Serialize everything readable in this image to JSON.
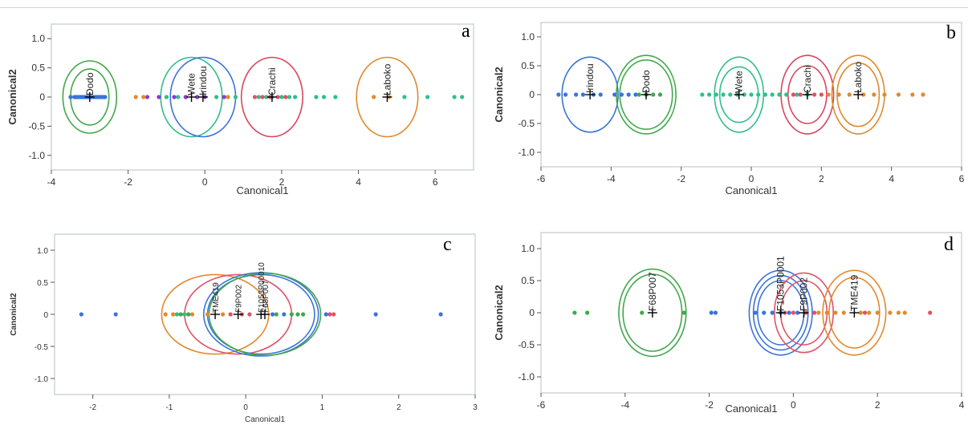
{
  "chart_data": [
    {
      "type": "scatter",
      "panel_label": "a",
      "xlabel": "Canonical1",
      "ylabel": "Canonical2",
      "xlim": [
        -4,
        7
      ],
      "ylim": [
        -1.25,
        1.25
      ],
      "xticks": [
        -4,
        -2,
        0,
        2,
        4,
        6
      ],
      "yticks": [
        -1.0,
        -0.5,
        0,
        0.5,
        1.0
      ],
      "tick_format": 1,
      "grid": false,
      "groups": [
        {
          "name": "Dodo",
          "color": "#3a74d8",
          "ring_color": "#3fa84a",
          "mean": 3.0,
          "mean_sign": -1,
          "radii": [
            [
              0.7,
              0.62
            ],
            [
              0.5,
              0.48
            ]
          ],
          "points": [
            -3.5,
            -3.4,
            -3.35,
            -3.3,
            -3.25,
            -3.2,
            -3.15,
            -3.1,
            -3.05,
            -3.0,
            -2.95,
            -2.9,
            -2.85,
            -2.8,
            -2.75,
            -2.7,
            -2.65,
            -2.6
          ]
        },
        {
          "name": "Wete",
          "color": "#2fbf8a",
          "ring_color": "#2fbf8a",
          "mean": 0.35,
          "mean_sign": -1,
          "radii": [
            [
              0.8,
              0.68
            ]
          ],
          "points": [
            -1.0,
            -0.7,
            -0.5,
            -0.2,
            0.3,
            0.8,
            1.4,
            2.9,
            3.1,
            3.4,
            5.2,
            5.8,
            6.5,
            6.7
          ]
        },
        {
          "name": "Irindou",
          "color": "#8d3ec7",
          "ring_color": "#3a74d8",
          "mean": 0.05,
          "mean_sign": -1,
          "radii": [
            [
              0.85,
              0.68
            ]
          ],
          "points": [
            -1.5,
            -1.2,
            -0.8,
            -0.5,
            -0.2,
            0.0,
            0.5
          ]
        },
        {
          "name": "Crachi",
          "color": "#e05268",
          "ring_color": "#d9475e",
          "mean": 1.75,
          "mean_sign": 1,
          "radii": [
            [
              0.8,
              0.68
            ]
          ],
          "points": [
            1.3,
            1.5,
            1.7,
            1.9,
            2.1
          ]
        },
        {
          "name": "Laboko",
          "color": "#e08a2e",
          "ring_color": "#e08a2e",
          "mean": 4.75,
          "mean_sign": 1,
          "radii": [
            [
              0.8,
              0.68
            ]
          ],
          "points": [
            -1.8,
            -1.6,
            0.6,
            4.4,
            4.8
          ]
        }
      ],
      "extra_points": [
        {
          "color": "#2fbf8a",
          "x": [
            1.6,
            1.75,
            2.0,
            2.2,
            2.35
          ]
        }
      ]
    },
    {
      "type": "scatter",
      "panel_label": "b",
      "xlabel": "Canonical1",
      "ylabel": "Canonical2",
      "xlim": [
        -6,
        6
      ],
      "ylim": [
        -1.25,
        1.25
      ],
      "xticks": [
        -6,
        -4,
        -2,
        0,
        2,
        4,
        6
      ],
      "yticks": [
        -1.0,
        -0.5,
        0,
        0.5,
        1.0
      ],
      "tick_format": 1,
      "grid": false,
      "groups": [
        {
          "name": "Irindou",
          "color": "#3a74d8",
          "ring_color": "#3a74d8",
          "mean": 4.6,
          "mean_sign": -1,
          "radii": [
            [
              0.8,
              0.65
            ]
          ],
          "points": [
            -5.5,
            -5.3,
            -5.0,
            -4.8,
            -4.5,
            -4.3,
            -3.9,
            -3.7,
            -3.5,
            -3.3
          ]
        },
        {
          "name": "Dodo",
          "color": "#3fa84a",
          "ring_color": "#3fa84a",
          "mean": 3.0,
          "mean_sign": -1,
          "radii": [
            [
              0.85,
              0.68
            ],
            [
              0.75,
              0.6
            ]
          ],
          "points": [
            -3.2,
            -3.0,
            -2.8,
            -2.6
          ]
        },
        {
          "name": "Wete",
          "color": "#2fbf8a",
          "ring_color": "#2fbf8a",
          "mean": 0.35,
          "mean_sign": -1,
          "radii": [
            [
              0.7,
              0.65
            ],
            [
              0.55,
              0.48
            ]
          ],
          "points": [
            -1.4,
            -1.2,
            -1.0,
            -0.8,
            -0.6,
            -0.4,
            -0.2,
            0.0,
            0.2,
            0.4,
            0.6,
            0.8,
            1.0,
            1.3,
            1.6
          ]
        },
        {
          "name": "Crachi",
          "color": "#e05268",
          "ring_color": "#d9475e",
          "mean": 1.6,
          "mean_sign": 1,
          "radii": [
            [
              0.75,
              0.68
            ],
            [
              0.55,
              0.5
            ]
          ],
          "points": [
            1.2,
            1.4,
            1.8,
            2.0
          ]
        },
        {
          "name": "Laboko",
          "color": "#e08a2e",
          "ring_color": "#e08a2e",
          "mean": 3.05,
          "mean_sign": 1,
          "radii": [
            [
              0.75,
              0.68
            ],
            [
              0.6,
              0.55
            ]
          ],
          "points": [
            2.2,
            2.5,
            2.8,
            3.2,
            3.5,
            3.8,
            4.2,
            4.6,
            4.9
          ]
        }
      ],
      "extra_points": []
    },
    {
      "type": "scatter",
      "panel_label": "c",
      "xlabel": "Canonical1",
      "ylabel": "Canonical2",
      "xlim": [
        -2.5,
        3
      ],
      "ylim": [
        -1.25,
        1.25
      ],
      "xticks": [
        -2,
        -1,
        0,
        1,
        2,
        3
      ],
      "yticks": [
        -1.0,
        -0.5,
        0,
        0.5,
        1.0
      ],
      "tick_format": 1,
      "grid": false,
      "groups": [
        {
          "name": "TME419",
          "color": "#e08a2e",
          "ring_color": "#e08a2e",
          "mean": 0.4,
          "mean_sign": -1,
          "radii": [
            [
              0.7,
              0.62
            ]
          ],
          "points": [
            -1.05,
            -0.95,
            -0.7,
            -0.5,
            -0.3
          ]
        },
        {
          "name": "F9P002",
          "color": "#e05268",
          "ring_color": "#e05268",
          "mean": 0.1,
          "mean_sign": -1,
          "radii": [
            [
              0.7,
              0.62
            ]
          ],
          "points": [
            -0.2,
            -0.05,
            0.05,
            1.1,
            1.15
          ]
        },
        {
          "name": "F1053P00010",
          "color": "#3a74d8",
          "ring_color": "#3a74d8",
          "mean": 0.2,
          "mean_sign": 1,
          "radii": [
            [
              0.75,
              0.65
            ],
            [
              0.7,
              0.62
            ]
          ],
          "points": [
            -2.15,
            -1.7,
            0.35,
            0.5,
            1.05,
            1.7,
            2.55
          ]
        },
        {
          "name": "F68P007",
          "color": "#3fa84a",
          "ring_color": "#3fa84a",
          "mean": 0.25,
          "mean_sign": 1,
          "radii": [
            [
              0.73,
              0.64
            ]
          ],
          "points": [
            -0.85,
            -0.75,
            0.4,
            0.6,
            0.68,
            0.75
          ]
        }
      ],
      "extra_points": [
        {
          "color": "#2fbf8a",
          "x": [
            -0.9,
            -0.8
          ]
        }
      ]
    },
    {
      "type": "scatter",
      "panel_label": "d",
      "xlabel": "Canonical1",
      "ylabel": "Canonical2",
      "xlim": [
        -6,
        4
      ],
      "ylim": [
        -1.25,
        1.25
      ],
      "xticks": [
        -6,
        -4,
        -2,
        0,
        2,
        4
      ],
      "yticks": [
        -1.0,
        -0.5,
        0,
        0.5,
        1.0
      ],
      "tick_format": 1,
      "grid": false,
      "groups": [
        {
          "name": "F68P007",
          "color": "#3fa84a",
          "ring_color": "#3fa84a",
          "mean": 3.35,
          "mean_sign": -1,
          "radii": [
            [
              0.8,
              0.68
            ],
            [
              0.7,
              0.6
            ]
          ],
          "points": [
            -5.2,
            -4.9,
            -3.6,
            -2.6
          ]
        },
        {
          "name": "F1053P0001",
          "color": "#3a74d8",
          "ring_color": "#3a74d8",
          "mean": 0.3,
          "mean_sign": -1,
          "radii": [
            [
              0.75,
              0.66
            ],
            [
              0.65,
              0.58
            ],
            [
              0.55,
              0.5
            ]
          ],
          "points": [
            -1.95,
            -1.85,
            -0.9,
            -0.7,
            -0.5,
            -0.3,
            -0.1,
            0.1
          ]
        },
        {
          "name": "F9P002",
          "color": "#e05268",
          "ring_color": "#e05268",
          "mean": 0.25,
          "mean_sign": 1,
          "radii": [
            [
              0.7,
              0.62
            ],
            [
              0.55,
              0.5
            ]
          ],
          "points": [
            -0.2,
            0.0,
            0.3,
            0.5,
            1.7,
            3.25
          ]
        },
        {
          "name": "TME419",
          "color": "#e08a2e",
          "ring_color": "#e08a2e",
          "mean": 1.45,
          "mean_sign": 1,
          "radii": [
            [
              0.75,
              0.66
            ],
            [
              0.6,
              0.55
            ]
          ],
          "points": [
            0.6,
            0.8,
            1.0,
            1.2,
            1.6,
            1.8,
            2.0,
            2.3,
            2.5,
            2.65
          ]
        }
      ],
      "extra_points": []
    }
  ]
}
